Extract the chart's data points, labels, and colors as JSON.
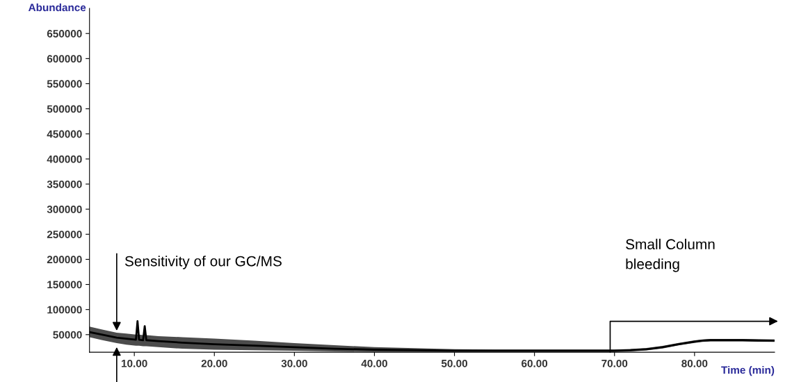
{
  "chart_data": {
    "type": "line",
    "xlabel": "Time (min)",
    "ylabel": "Abundance",
    "x": [
      4.4,
      6,
      7.8,
      9,
      10.2,
      10.4,
      10.6,
      11.1,
      11.3,
      11.5,
      13,
      16,
      20,
      25,
      30,
      35,
      40,
      45,
      50,
      55,
      60,
      65,
      70,
      72,
      74,
      76,
      78,
      80,
      81,
      82,
      84,
      86,
      88,
      90
    ],
    "series": [
      {
        "color": "#000000",
        "values": [
          55000,
          50000,
          44000,
          42000,
          40000,
          77000,
          40000,
          39000,
          67000,
          39000,
          37000,
          34000,
          31000,
          28000,
          25000,
          22000,
          20000,
          19000,
          18000,
          18000,
          18000,
          18000,
          18000,
          19000,
          21000,
          25000,
          31000,
          36000,
          38000,
          39000,
          39000,
          39000,
          38000,
          38000
        ],
        "lower": [
          45000,
          39000,
          33000,
          30000,
          28000,
          28000,
          28000,
          27000,
          27000,
          27000,
          25000,
          22000,
          20000,
          19000,
          18000,
          16500,
          15500,
          15500,
          15500,
          15500,
          15500,
          15500,
          15500,
          16500,
          18500,
          22500,
          28500,
          33500,
          35500,
          36500,
          36500,
          36500,
          36000,
          35500
        ],
        "upper": [
          66000,
          60000,
          54000,
          52000,
          50000,
          50000,
          50000,
          49000,
          49000,
          49000,
          47000,
          45000,
          42000,
          38000,
          33000,
          29000,
          25000,
          23000,
          21000,
          20500,
          20500,
          20500,
          20500,
          21500,
          23500,
          27500,
          33500,
          38500,
          40500,
          41500,
          41500,
          41500,
          41000,
          40500
        ]
      }
    ],
    "xlim": [
      4.4,
      90
    ],
    "ylim": [
      15000,
      700000
    ],
    "xticks": [
      {
        "value": 10,
        "label": "10.00"
      },
      {
        "value": 20,
        "label": "20.00"
      },
      {
        "value": 30,
        "label": "30.00"
      },
      {
        "value": 40,
        "label": "40.00"
      },
      {
        "value": 50,
        "label": "50.00"
      },
      {
        "value": 60,
        "label": "60.00"
      },
      {
        "value": 70,
        "label": "70.00"
      },
      {
        "value": 80,
        "label": "80.00"
      }
    ],
    "yticks": [
      50000,
      100000,
      150000,
      200000,
      250000,
      300000,
      350000,
      400000,
      450000,
      500000,
      550000,
      600000,
      650000
    ],
    "grid": false,
    "annotations": [
      {
        "text": "Sensitivity of our GC/MS",
        "x": 7.8,
        "y": 54000
      },
      "Small Column\nbleeding"
    ]
  }
}
